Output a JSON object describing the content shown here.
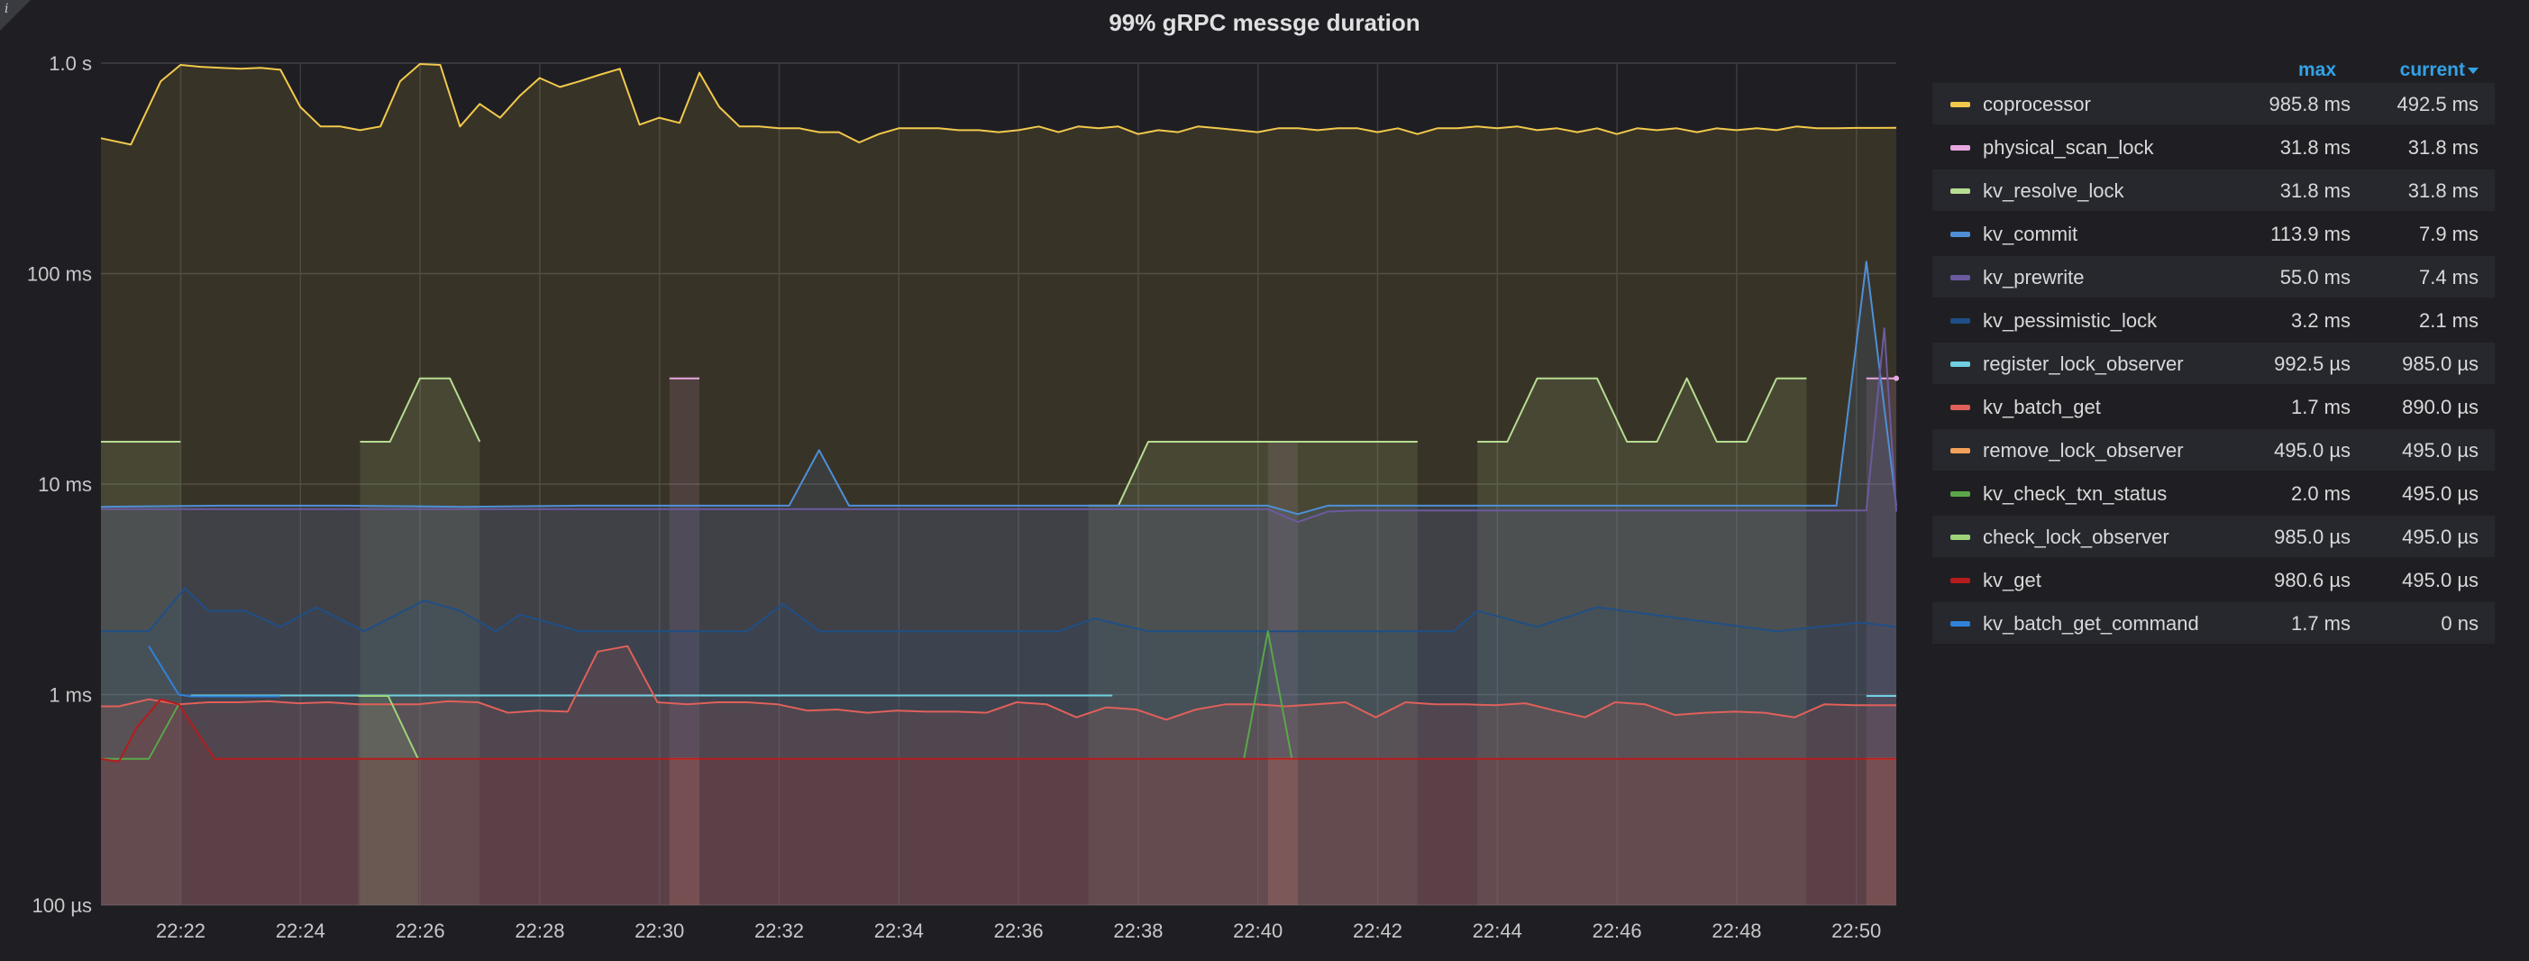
{
  "panel": {
    "title": "99% gRPC messge duration",
    "info_icon": "info-icon"
  },
  "legend": {
    "header_max": "max",
    "header_current": "current",
    "items": [
      {
        "name": "coprocessor",
        "max": "985.8 ms",
        "current": "492.5 ms",
        "color": "#f2c94c"
      },
      {
        "name": "physical_scan_lock",
        "max": "31.8 ms",
        "current": "31.8 ms",
        "color": "#e8a6e0"
      },
      {
        "name": "kv_resolve_lock",
        "max": "31.8 ms",
        "current": "31.8 ms",
        "color": "#b6dd91"
      },
      {
        "name": "kv_commit",
        "max": "113.9 ms",
        "current": "7.9 ms",
        "color": "#4f8fd6"
      },
      {
        "name": "kv_prewrite",
        "max": "55.0 ms",
        "current": "7.4 ms",
        "color": "#6b5a9e"
      },
      {
        "name": "kv_pessimistic_lock",
        "max": "3.2 ms",
        "current": "2.1 ms",
        "color": "#1f4f86"
      },
      {
        "name": "register_lock_observer",
        "max": "992.5 µs",
        "current": "985.0 µs",
        "color": "#6ed0e0"
      },
      {
        "name": "kv_batch_get",
        "max": "1.7 ms",
        "current": "890.0 µs",
        "color": "#e0605a"
      },
      {
        "name": "remove_lock_observer",
        "max": "495.0 µs",
        "current": "495.0 µs",
        "color": "#f4a15b"
      },
      {
        "name": "kv_check_txn_status",
        "max": "2.0 ms",
        "current": "495.0 µs",
        "color": "#5aa64b"
      },
      {
        "name": "check_lock_observer",
        "max": "985.0 µs",
        "current": "495.0 µs",
        "color": "#9fd37a"
      },
      {
        "name": "kv_get",
        "max": "980.6 µs",
        "current": "495.0 µs",
        "color": "#b51c1c"
      },
      {
        "name": "kv_batch_get_command",
        "max": "1.7 ms",
        "current": "0 ns",
        "color": "#2f82d9"
      }
    ]
  },
  "chart_data": {
    "type": "area",
    "title": "99% gRPC messge duration",
    "y_scale": "log",
    "y_unit": "seconds",
    "ylim": [
      0.0001,
      1.0
    ],
    "y_ticks": [
      {
        "value": 1.0,
        "label": "1.0 s"
      },
      {
        "value": 0.1,
        "label": "100 ms"
      },
      {
        "value": 0.01,
        "label": "10 ms"
      },
      {
        "value": 0.001,
        "label": "1 ms"
      },
      {
        "value": 0.0001,
        "label": "100 µs"
      }
    ],
    "x_tick_labels": [
      "22:22",
      "22:24",
      "22:26",
      "22:28",
      "22:30",
      "22:32",
      "22:34",
      "22:36",
      "22:38",
      "22:40",
      "22:42",
      "22:44",
      "22:46",
      "22:48",
      "22:50"
    ],
    "x_range_minutes": [
      "22:20:40",
      "22:50:40"
    ],
    "grid": true,
    "legend_position": "right",
    "series": [
      {
        "name": "coprocessor",
        "color": "#f2c94c",
        "fill": true,
        "x": [
          0,
          0.5,
          1,
          1.33,
          1.67,
          2,
          2.33,
          2.67,
          3,
          3.33,
          3.67,
          4,
          4.33,
          4.67,
          5,
          5.33,
          5.67,
          6,
          6.33,
          6.67,
          7,
          7.33,
          7.67,
          8,
          8.33,
          8.67,
          9,
          9.33,
          9.67,
          10,
          10.33,
          10.67,
          11,
          11.33,
          11.67,
          12,
          12.33,
          12.67,
          13,
          13.33,
          13.67,
          14,
          14.33,
          14.67,
          15,
          15.33,
          15.67,
          16,
          16.33,
          16.67,
          17,
          17.33,
          17.67,
          18,
          18.33,
          18.67,
          19,
          19.33,
          19.67,
          20,
          20.33,
          20.67,
          21,
          21.33,
          21.67,
          22,
          22.33,
          22.67,
          23,
          23.33,
          23.67,
          24,
          24.33,
          24.67,
          25,
          25.33,
          25.67,
          26,
          26.33,
          26.67,
          27,
          27.33,
          27.67,
          28,
          28.33,
          28.67,
          29,
          29.33,
          29.67,
          30
        ],
        "y": [
          0.44,
          0.41,
          0.82,
          0.98,
          0.96,
          0.95,
          0.94,
          0.95,
          0.93,
          0.62,
          0.5,
          0.5,
          0.48,
          0.5,
          0.82,
          0.99,
          0.98,
          0.5,
          0.64,
          0.55,
          0.7,
          0.85,
          0.77,
          0.82,
          0.88,
          0.94,
          0.51,
          0.55,
          0.52,
          0.9,
          0.62,
          0.5,
          0.5,
          0.49,
          0.49,
          0.47,
          0.47,
          0.42,
          0.46,
          0.49,
          0.49,
          0.49,
          0.48,
          0.48,
          0.47,
          0.48,
          0.5,
          0.47,
          0.5,
          0.49,
          0.5,
          0.46,
          0.48,
          0.47,
          0.5,
          0.49,
          0.48,
          0.47,
          0.49,
          0.49,
          0.48,
          0.49,
          0.49,
          0.47,
          0.49,
          0.46,
          0.49,
          0.49,
          0.5,
          0.49,
          0.5,
          0.48,
          0.49,
          0.47,
          0.49,
          0.46,
          0.49,
          0.48,
          0.49,
          0.47,
          0.49,
          0.48,
          0.49,
          0.48,
          0.5,
          0.49,
          0.49,
          0.492,
          0.492,
          0.4925
        ]
      },
      {
        "name": "physical_scan_lock",
        "color": "#e8a6e0",
        "fill": true,
        "segments": [
          {
            "x": [
              9.5,
              10
            ],
            "y": [
              0.0318,
              0.0318
            ]
          },
          {
            "x": [
              19.5,
              20
            ],
            "y": [
              0.0159,
              0.0159
            ]
          },
          {
            "x": [
              29.5,
              30
            ],
            "y": [
              0.0318,
              0.0318
            ]
          }
        ]
      },
      {
        "name": "kv_resolve_lock",
        "color": "#b6dd91",
        "fill": true,
        "segments": [
          {
            "x": [
              0,
              1.33
            ],
            "y": [
              0.0159,
              0.0159
            ]
          },
          {
            "x": [
              4.33,
              4.83,
              5.33,
              5.83,
              6.33
            ],
            "y": [
              0.0159,
              0.0159,
              0.0318,
              0.0318,
              0.0159
            ]
          },
          {
            "x": [
              16.5,
              17,
              17.5,
              18,
              19,
              20,
              21,
              22
            ],
            "y": [
              0.0079,
              0.0079,
              0.0159,
              0.0159,
              0.0159,
              0.0159,
              0.0159,
              0.0159
            ]
          },
          {
            "x": [
              23,
              23.5,
              24,
              24.5,
              25,
              25.5,
              26,
              26.5,
              27,
              27.5,
              28
            ],
            "y": [
              0.0159,
              0.0159,
              0.0318,
              0.0318,
              0.0318,
              0.0159,
              0.0159,
              0.0318,
              0.0159,
              0.0159,
              0.0318
            ]
          },
          {
            "x": [
              28,
              28.5
            ],
            "y": [
              0.0318,
              0.0318
            ]
          }
        ]
      },
      {
        "name": "kv_commit",
        "color": "#4f8fd6",
        "fill": true,
        "x": [
          0,
          2,
          4,
          6,
          8,
          10,
          11.5,
          12,
          12.5,
          13,
          15,
          17,
          19,
          19.5,
          20,
          20.5,
          21,
          23,
          25,
          27,
          29,
          29.5,
          30
        ],
        "y": [
          0.0078,
          0.0079,
          0.0079,
          0.0078,
          0.0079,
          0.0079,
          0.0079,
          0.0145,
          0.0079,
          0.0079,
          0.0079,
          0.0079,
          0.0079,
          0.0079,
          0.0072,
          0.0079,
          0.0079,
          0.0079,
          0.0079,
          0.0079,
          0.0079,
          0.1139,
          0.0079
        ]
      },
      {
        "name": "kv_prewrite",
        "color": "#6b5a9e",
        "fill": true,
        "x": [
          0,
          5,
          10,
          15,
          19.5,
          20,
          20.5,
          21,
          25,
          29.5,
          29.8,
          30
        ],
        "y": [
          0.0076,
          0.0076,
          0.0076,
          0.0076,
          0.0076,
          0.0066,
          0.0074,
          0.0075,
          0.0075,
          0.0075,
          0.055,
          0.0074
        ]
      },
      {
        "name": "kv_pessimistic_lock",
        "color": "#1f4f86",
        "fill": true,
        "x": [
          0,
          0.8,
          1.4,
          1.8,
          2.4,
          3,
          3.6,
          4.4,
          5.4,
          6,
          6.6,
          7,
          8,
          10.8,
          11.4,
          12,
          14,
          16,
          16.6,
          17.5,
          22.6,
          23,
          24,
          25,
          28,
          29.4,
          30
        ],
        "y": [
          0.002,
          0.002,
          0.0032,
          0.0025,
          0.0025,
          0.0021,
          0.0026,
          0.002,
          0.0028,
          0.0025,
          0.002,
          0.0024,
          0.002,
          0.002,
          0.0027,
          0.002,
          0.002,
          0.002,
          0.0023,
          0.002,
          0.002,
          0.0025,
          0.0021,
          0.0026,
          0.002,
          0.0022,
          0.0021
        ]
      },
      {
        "name": "register_lock_observer",
        "color": "#6ed0e0",
        "fill": false,
        "segments": [
          {
            "x": [
              1.5,
              16.9
            ],
            "y": [
              0.00099,
              0.00099
            ]
          },
          {
            "x": [
              9.5,
              10
            ],
            "y": [
              0.00099,
              0.00099
            ]
          },
          {
            "x": [
              29.5,
              30
            ],
            "y": [
              0.000985,
              0.000985
            ]
          }
        ]
      },
      {
        "name": "kv_batch_get",
        "color": "#e0605a",
        "fill": true,
        "x": [
          0,
          0.3,
          0.8,
          1.3,
          1.8,
          2.3,
          2.8,
          3.3,
          3.8,
          4.3,
          4.8,
          5.3,
          5.8,
          6.3,
          6.8,
          7.3,
          7.8,
          8.3,
          8.8,
          9.3,
          9.8,
          10.3,
          10.8,
          11.3,
          11.8,
          12.3,
          12.8,
          13.3,
          13.8,
          14.3,
          14.8,
          15.3,
          15.8,
          16.3,
          16.8,
          17.3,
          17.8,
          18.3,
          18.8,
          19.3,
          19.8,
          20.3,
          20.8,
          21.3,
          21.8,
          22.3,
          22.8,
          23.3,
          23.8,
          24.3,
          24.8,
          25.3,
          25.8,
          26.3,
          26.8,
          27.3,
          27.8,
          28.3,
          28.8,
          29.3,
          30
        ],
        "y": [
          0.00088,
          0.00088,
          0.00095,
          0.0009,
          0.00092,
          0.00092,
          0.00093,
          0.00091,
          0.00092,
          0.0009,
          0.0009,
          0.0009,
          0.00093,
          0.00092,
          0.00082,
          0.00084,
          0.00083,
          0.0016,
          0.0017,
          0.00092,
          0.0009,
          0.00092,
          0.00092,
          0.0009,
          0.00084,
          0.00085,
          0.00082,
          0.00084,
          0.00083,
          0.00083,
          0.00082,
          0.00092,
          0.0009,
          0.00078,
          0.00087,
          0.00085,
          0.00076,
          0.00085,
          0.0009,
          0.0009,
          0.00088,
          0.0009,
          0.00092,
          0.00078,
          0.00092,
          0.0009,
          0.0009,
          0.00089,
          0.00091,
          0.00084,
          0.00078,
          0.00092,
          0.0009,
          0.0008,
          0.00082,
          0.00083,
          0.00082,
          0.00078,
          0.0009,
          0.00089,
          0.00089
        ]
      },
      {
        "name": "remove_lock_observer",
        "color": "#f4a15b",
        "fill": true,
        "segments": [
          {
            "x": [
              9.5,
              10
            ],
            "y": [
              0.000495,
              0.000495
            ]
          },
          {
            "x": [
              19.5,
              20
            ],
            "y": [
              0.000495,
              0.000495
            ]
          },
          {
            "x": [
              29.5,
              30
            ],
            "y": [
              0.000495,
              0.000495
            ]
          }
        ]
      },
      {
        "name": "kv_check_txn_status",
        "color": "#5aa64b",
        "fill": false,
        "segments": [
          {
            "x": [
              0,
              0.8,
              1.3
            ],
            "y": [
              0.000495,
              0.000495,
              0.0009
            ]
          },
          {
            "x": [
              19.1,
              19.5,
              19.9
            ],
            "y": [
              0.000495,
              0.002,
              0.000495
            ]
          }
        ]
      },
      {
        "name": "check_lock_observer",
        "color": "#9fd37a",
        "fill": true,
        "segments": [
          {
            "x": [
              4.3,
              4.8,
              5.3
            ],
            "y": [
              0.000985,
              0.000985,
              0.000495
            ]
          }
        ]
      },
      {
        "name": "kv_get",
        "color": "#b51c1c",
        "fill": true,
        "x": [
          0,
          0.3,
          0.6,
          1,
          1.3,
          1.9,
          5,
          10,
          15,
          20,
          25,
          29.5,
          30
        ],
        "y": [
          0.000495,
          0.00048,
          0.0007,
          0.00095,
          0.0009,
          0.000495,
          0.000495,
          0.000495,
          0.000495,
          0.000495,
          0.000495,
          0.000495,
          0.000495
        ]
      },
      {
        "name": "kv_batch_get_command",
        "color": "#2f82d9",
        "fill": false,
        "segments": [
          {
            "x": [
              0.8,
              1.3,
              1.5,
              3
            ],
            "y": [
              0.0017,
              0.001,
              0.00098,
              0.00098
            ]
          }
        ]
      }
    ]
  }
}
